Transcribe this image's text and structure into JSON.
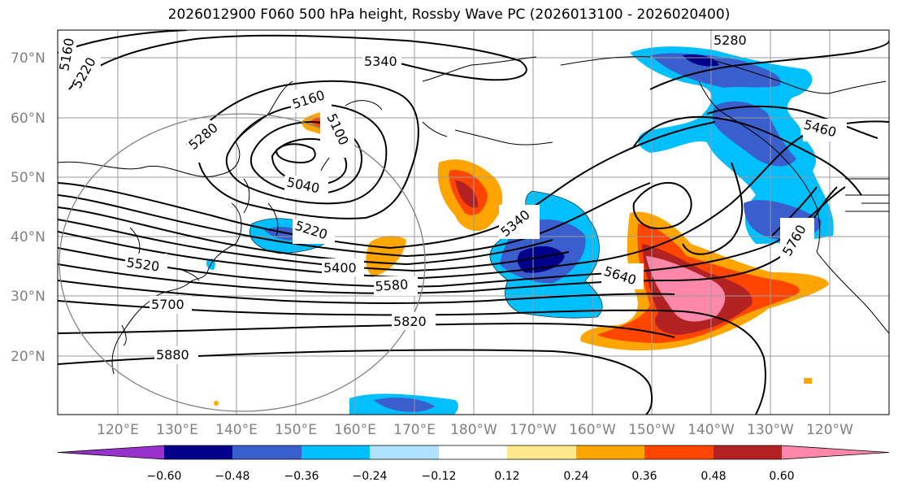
{
  "title": "2026012900 F060 500 hPa height, Rossby Wave PC (2026013100 - 2026020400)",
  "lat_labels": [
    "70°N",
    "60°N",
    "50°N",
    "40°N",
    "30°N",
    "20°N"
  ],
  "lon_labels": [
    "120°E",
    "130°E",
    "140°E",
    "150°E",
    "160°E",
    "170°E",
    "180°W",
    "170°W",
    "160°W",
    "150°W",
    "140°W",
    "130°W",
    "120°W"
  ],
  "contour_labels": [
    "5160",
    "5220",
    "5280",
    "5340",
    "5160",
    "5100",
    "5040",
    "5220",
    "5400",
    "5520",
    "5580",
    "5700",
    "5820",
    "5880",
    "5340",
    "5640",
    "5280",
    "5460",
    "5760"
  ],
  "colorbar": {
    "ticks": [
      "−0.60",
      "−0.48",
      "−0.36",
      "−0.24",
      "−0.12",
      "0.12",
      "0.24",
      "0.36",
      "0.48",
      "0.60"
    ],
    "colors": [
      "#9932cc",
      "#00008b",
      "#3a5fcd",
      "#00bfff",
      "#b0e2ff",
      "#ffffff",
      "#ffe98a",
      "#ffa500",
      "#ff4500",
      "#b22222",
      "#ff88aa"
    ]
  }
}
